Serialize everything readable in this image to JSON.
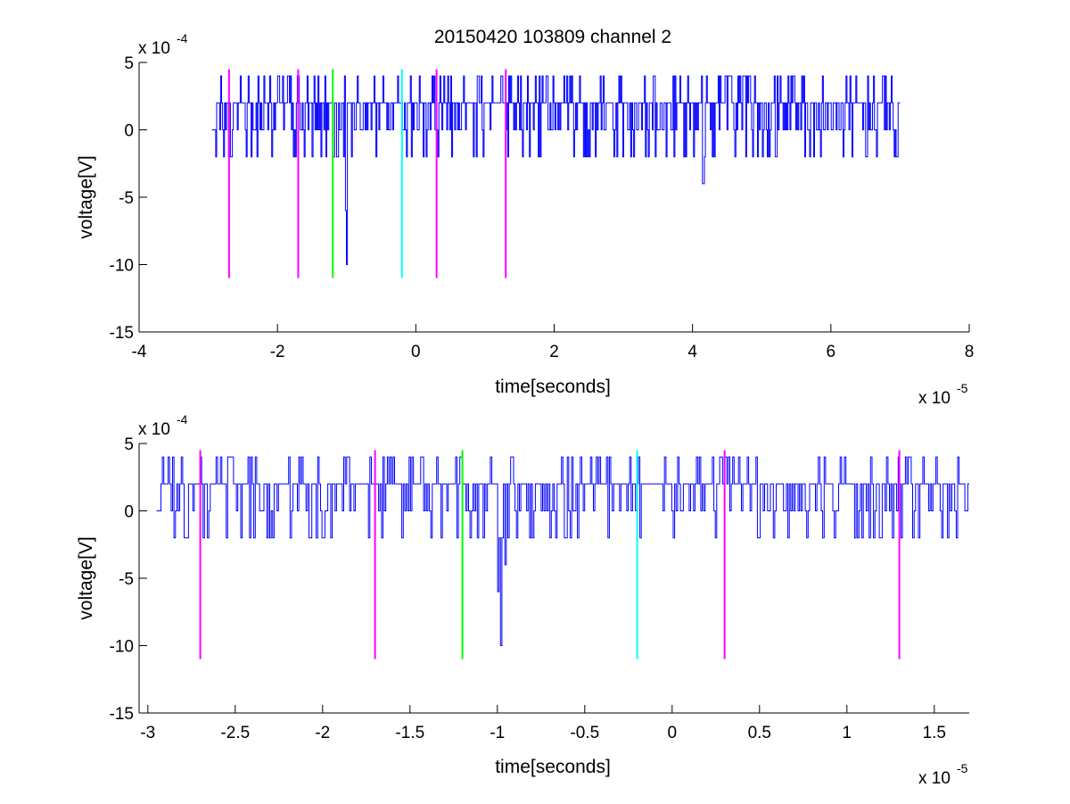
{
  "chart_data": [
    {
      "type": "line",
      "title": "20150420 103809 channel 2",
      "xlabel": "time[seconds]",
      "ylabel": "voltage[V]",
      "x_exponent_label": "x 10",
      "x_exponent": "-5",
      "y_exponent_label": "x 10",
      "y_exponent": "-4",
      "xlim": [
        -4,
        8
      ],
      "ylim": [
        -15,
        5
      ],
      "x_ticks": [
        -4,
        -2,
        0,
        2,
        4,
        6,
        8
      ],
      "y_ticks": [
        -15,
        -10,
        -5,
        0,
        5
      ],
      "x_tick_labels": [
        "-4",
        "-2",
        "0",
        "2",
        "4",
        "6",
        "8"
      ],
      "y_tick_labels": [
        "-15",
        "-10",
        "-5",
        "0",
        "5"
      ],
      "grid": false,
      "series": [
        {
          "color": "#0000ff",
          "x_range": [
            -2.95,
            7.0
          ],
          "baseline": 2,
          "noise_levels": [
            -2,
            0,
            2,
            4
          ],
          "spikes": [
            {
              "x": -1.0,
              "y": -10
            },
            {
              "x": -1.02,
              "y": -6
            },
            {
              "x": 4.15,
              "y": -4
            }
          ]
        }
      ],
      "markers": [
        {
          "x": -2.7,
          "y_top": 4.5,
          "y_bottom": -11,
          "color": "#ff00ff"
        },
        {
          "x": -1.7,
          "y_top": 4.5,
          "y_bottom": -11,
          "color": "#ff00ff"
        },
        {
          "x": -1.2,
          "y_top": 4.5,
          "y_bottom": -11,
          "color": "#00ff00"
        },
        {
          "x": -0.2,
          "y_top": 4.5,
          "y_bottom": -11,
          "color": "#00ffff"
        },
        {
          "x": 0.3,
          "y_top": 4.5,
          "y_bottom": -11,
          "color": "#ff00ff"
        },
        {
          "x": 1.3,
          "y_top": 4.5,
          "y_bottom": -11,
          "color": "#ff00ff"
        }
      ]
    },
    {
      "type": "line",
      "title": "",
      "xlabel": "time[seconds]",
      "ylabel": "voltage[V]",
      "x_exponent_label": "x 10",
      "x_exponent": "-5",
      "y_exponent_label": "x 10",
      "y_exponent": "-4",
      "xlim": [
        -3.05,
        1.7
      ],
      "ylim": [
        -15,
        5
      ],
      "x_ticks": [
        -3,
        -2.5,
        -2,
        -1.5,
        -1,
        -0.5,
        0,
        0.5,
        1,
        1.5
      ],
      "y_ticks": [
        -15,
        -10,
        -5,
        0,
        5
      ],
      "x_tick_labels": [
        "-3",
        "-2.5",
        "-2",
        "-1.5",
        "-1",
        "-0.5",
        "0",
        "0.5",
        "1",
        "1.5"
      ],
      "y_tick_labels": [
        "-15",
        "-10",
        "-5",
        "0",
        "5"
      ],
      "grid": false,
      "series": [
        {
          "color": "#0000ff",
          "x_range": [
            -2.95,
            1.7
          ],
          "baseline": 2,
          "noise_levels": [
            -2,
            0,
            2,
            4
          ],
          "spikes": [
            {
              "x": -0.98,
              "y": -10
            },
            {
              "x": -1.0,
              "y": -6
            },
            {
              "x": -0.96,
              "y": -4
            }
          ]
        }
      ],
      "markers": [
        {
          "x": -2.7,
          "y_top": 4.5,
          "y_bottom": -11,
          "color": "#ff00ff"
        },
        {
          "x": -1.7,
          "y_top": 4.5,
          "y_bottom": -11,
          "color": "#ff00ff"
        },
        {
          "x": -1.2,
          "y_top": 4.5,
          "y_bottom": -11,
          "color": "#00ff00"
        },
        {
          "x": -0.2,
          "y_top": 4.5,
          "y_bottom": -11,
          "color": "#00ffff"
        },
        {
          "x": 0.3,
          "y_top": 4.5,
          "y_bottom": -11,
          "color": "#ff00ff"
        },
        {
          "x": 1.3,
          "y_top": 4.5,
          "y_bottom": -11,
          "color": "#ff00ff"
        }
      ]
    }
  ]
}
